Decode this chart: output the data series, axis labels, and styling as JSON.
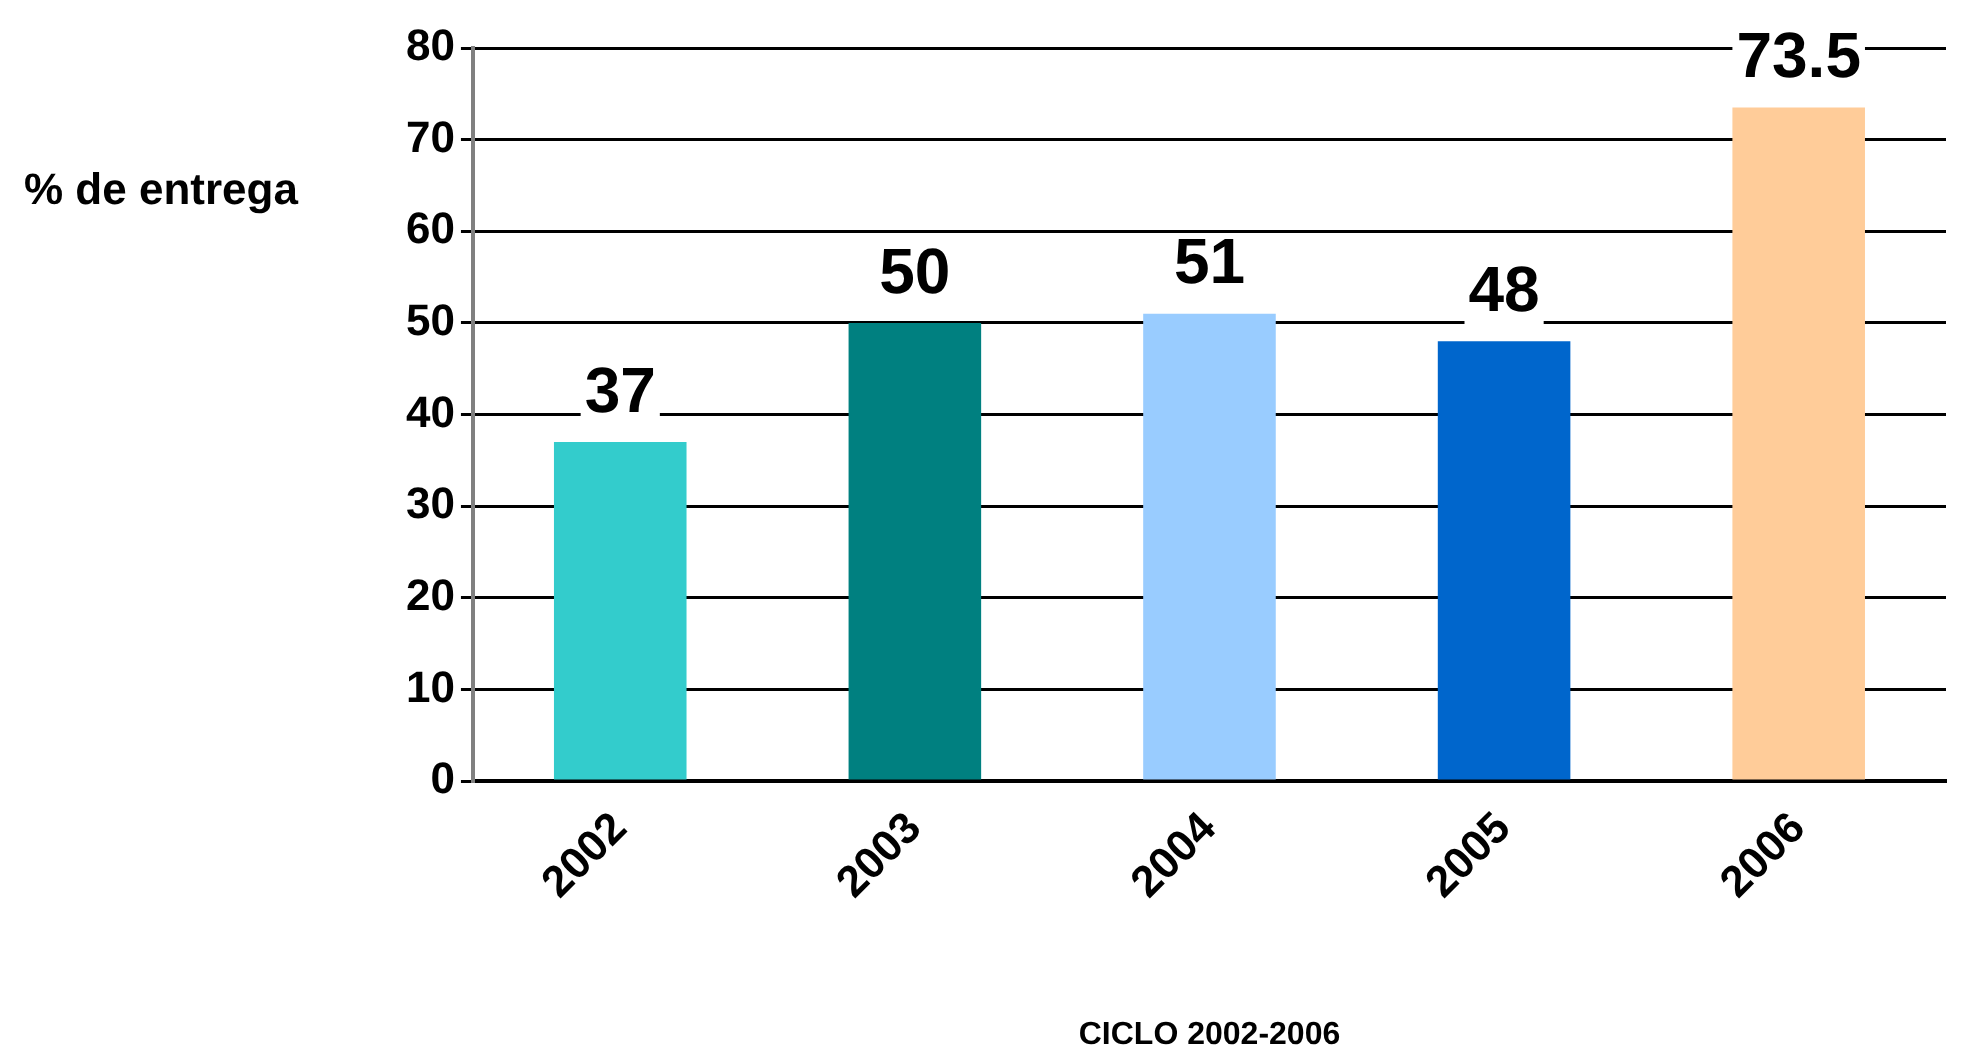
{
  "chart_data": {
    "type": "bar",
    "xlabel": "CICLO 2002-2006",
    "ylabel": "% de entrega",
    "categories": [
      "2002",
      "2003",
      "2004",
      "2005",
      "2006"
    ],
    "values": [
      37,
      50,
      51,
      48,
      73.5
    ],
    "colors": [
      "#33cccc",
      "#008080",
      "#99ccff",
      "#0066cc",
      "#ffcc99"
    ],
    "ylim": [
      0,
      80
    ],
    "yticks": [
      0,
      10,
      20,
      30,
      40,
      50,
      60,
      70,
      80
    ],
    "grid": "y",
    "data_labels": true
  }
}
